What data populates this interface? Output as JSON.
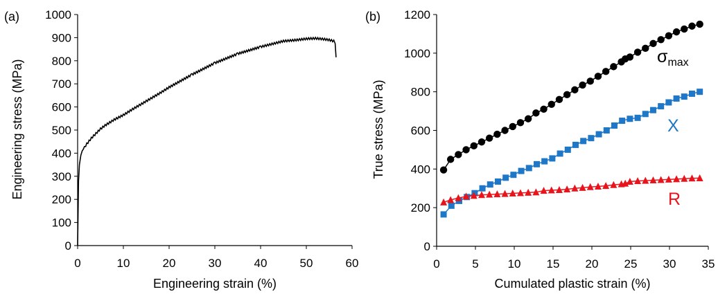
{
  "chart_data": [
    {
      "type": "line",
      "panel_label": "(a)",
      "xlabel": "Engineering strain (%)",
      "ylabel": "Engineering stress (MPa)",
      "xlim": [
        0,
        60
      ],
      "ylim": [
        0,
        1000
      ],
      "xticks": [
        "0",
        "10",
        "20",
        "30",
        "40",
        "50",
        "60"
      ],
      "yticks": [
        "0",
        "100",
        "200",
        "300",
        "400",
        "500",
        "600",
        "700",
        "800",
        "900",
        "1000"
      ],
      "grid": false,
      "series": [
        {
          "color": "#000000",
          "x": [
            0,
            0.1,
            0.2,
            0.4,
            0.7,
            1,
            1.5,
            2,
            3,
            4,
            5,
            6,
            8,
            10,
            12,
            15,
            18,
            20,
            25,
            30,
            35,
            40,
            43,
            45,
            48,
            50,
            52,
            54,
            55,
            56,
            56.3,
            56.5
          ],
          "y": [
            0,
            150,
            280,
            350,
            390,
            410,
            425,
            440,
            465,
            485,
            505,
            520,
            545,
            565,
            590,
            625,
            660,
            685,
            740,
            790,
            830,
            860,
            875,
            885,
            890,
            895,
            897,
            893,
            890,
            885,
            870,
            815
          ]
        }
      ]
    },
    {
      "type": "line",
      "panel_label": "(b)",
      "xlabel": "Cumulated plastic strain (%)",
      "ylabel": "True stress (MPa)",
      "xlim": [
        0,
        35
      ],
      "ylim": [
        0,
        1200
      ],
      "xticks": [
        "0",
        "5",
        "10",
        "15",
        "20",
        "25",
        "30",
        "35"
      ],
      "yticks": [
        "0",
        "200",
        "400",
        "600",
        "800",
        "1000",
        "1200"
      ],
      "grid": false,
      "series": [
        {
          "name_main": "σ",
          "name_sub": "max",
          "color": "#000000",
          "marker": "circle",
          "x": [
            0.9,
            1.8,
            2.8,
            3.8,
            4.8,
            5.8,
            6.8,
            7.8,
            8.8,
            9.8,
            10.8,
            11.8,
            12.8,
            13.8,
            14.8,
            15.8,
            16.8,
            17.8,
            18.8,
            19.8,
            20.8,
            21.8,
            22.8,
            23.8,
            24.3,
            24.9,
            25.9,
            26.9,
            27.9,
            28.9,
            29.9,
            30.9,
            31.9,
            32.9,
            33.9
          ],
          "y": [
            395,
            450,
            475,
            500,
            520,
            540,
            560,
            580,
            600,
            620,
            640,
            660,
            690,
            710,
            735,
            760,
            785,
            810,
            835,
            855,
            880,
            905,
            930,
            955,
            970,
            980,
            1005,
            1025,
            1050,
            1070,
            1090,
            1110,
            1125,
            1140,
            1150
          ]
        },
        {
          "name": "X",
          "color": "#1f77c8",
          "marker": "square",
          "x": [
            0.9,
            1.9,
            2.9,
            3.9,
            4.9,
            5.9,
            6.9,
            7.9,
            8.9,
            9.9,
            10.9,
            11.9,
            12.9,
            13.9,
            14.9,
            15.9,
            16.9,
            17.9,
            18.9,
            19.9,
            20.9,
            21.9,
            22.9,
            23.9,
            24.9,
            25.9,
            26.9,
            27.9,
            28.9,
            29.9,
            30.9,
            31.9,
            32.9,
            33.9
          ],
          "y": [
            165,
            210,
            235,
            255,
            275,
            300,
            320,
            335,
            355,
            370,
            390,
            405,
            425,
            440,
            455,
            480,
            500,
            525,
            545,
            560,
            580,
            600,
            625,
            650,
            660,
            665,
            685,
            705,
            725,
            745,
            765,
            775,
            790,
            800
          ]
        },
        {
          "name": "R",
          "color": "#e8141c",
          "marker": "triangle",
          "x": [
            0.9,
            1.8,
            2.8,
            3.8,
            4.8,
            5.8,
            6.8,
            7.8,
            8.8,
            9.8,
            10.8,
            11.8,
            12.8,
            13.8,
            14.8,
            15.8,
            16.8,
            17.8,
            18.8,
            19.8,
            20.8,
            21.8,
            22.8,
            23.8,
            24.3,
            24.9,
            25.9,
            26.9,
            27.9,
            28.9,
            29.9,
            30.9,
            31.9,
            32.9,
            33.9
          ],
          "y": [
            228,
            240,
            250,
            258,
            262,
            266,
            268,
            270,
            272,
            274,
            276,
            278,
            280,
            288,
            290,
            292,
            295,
            300,
            303,
            307,
            310,
            313,
            318,
            322,
            325,
            335,
            338,
            340,
            342,
            344,
            346,
            348,
            350,
            352,
            353
          ]
        }
      ]
    }
  ]
}
